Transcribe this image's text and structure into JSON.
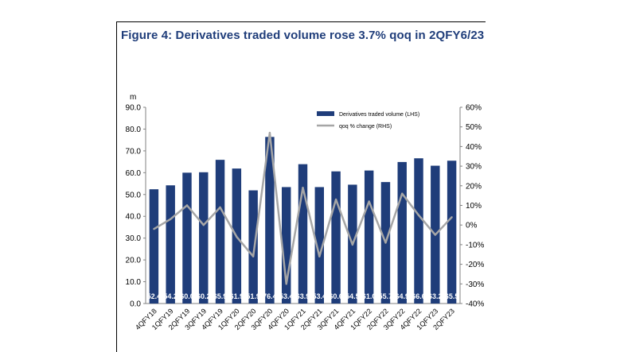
{
  "title": "Figure 4: Derivatives traded volume rose 3.7% qoq in 2QFY6/23",
  "chart_data": {
    "type": "bar",
    "title": "Figure 4: Derivatives traded volume rose 3.7% qoq in 2QFY6/23",
    "ylabel_left": "m",
    "categories": [
      "4QFY18",
      "1QFY19",
      "2QFY19",
      "3QFY19",
      "4QFY19",
      "1QFY20",
      "2QFY20",
      "3QFY20",
      "4QFY20",
      "1QFY21",
      "2QFY21",
      "3QFY21",
      "4QFY21",
      "1QFY22",
      "2QFY22",
      "3QFY22",
      "4QFY22",
      "1QFY23",
      "2QFY23"
    ],
    "ylim_left": [
      0,
      90
    ],
    "yticks_left": [
      "0.0",
      "10.0",
      "20.0",
      "30.0",
      "40.0",
      "50.0",
      "60.0",
      "70.0",
      "80.0",
      "90.0"
    ],
    "ylim_right": [
      -40,
      60
    ],
    "yticks_right": [
      "-40%",
      "-30%",
      "-20%",
      "-10%",
      "0%",
      "10%",
      "20%",
      "30%",
      "40%",
      "50%",
      "60%"
    ],
    "series": [
      {
        "name": "Derivatives traded volume (LHS)",
        "type": "bar",
        "color": "#1f3d7a",
        "values": [
          52.4,
          54.2,
          60.0,
          60.2,
          65.9,
          61.9,
          51.9,
          76.4,
          53.4,
          63.9,
          53.4,
          60.6,
          54.5,
          61.0,
          55.7,
          64.9,
          66.6,
          63.2,
          65.5
        ]
      },
      {
        "name": "qoq % change (RHS)",
        "type": "line",
        "color": "#a6a6a6",
        "values": [
          -2,
          3,
          10,
          0,
          9,
          -6,
          -16,
          47,
          -30,
          19,
          -16,
          13,
          -10,
          12,
          -9,
          16,
          5,
          -5,
          4
        ]
      }
    ],
    "legend_position": "top-right",
    "grid": false
  }
}
